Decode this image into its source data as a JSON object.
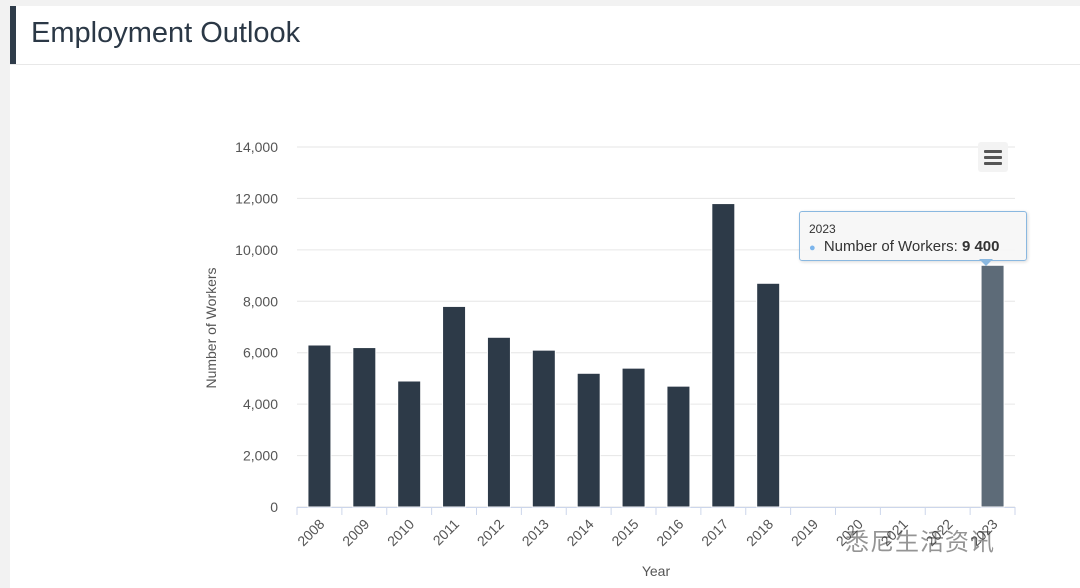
{
  "page": {
    "title": "Employment Outlook"
  },
  "chart_data": {
    "type": "bar",
    "title": "",
    "xlabel": "Year",
    "ylabel": "Number of Workers",
    "categories": [
      "2008",
      "2009",
      "2010",
      "2011",
      "2012",
      "2013",
      "2014",
      "2015",
      "2016",
      "2017",
      "2018",
      "2019",
      "2020",
      "2021",
      "2022",
      "2023"
    ],
    "values": [
      6300,
      6200,
      4900,
      7800,
      6600,
      6100,
      5200,
      5400,
      4700,
      11800,
      8700,
      null,
      null,
      null,
      null,
      9400
    ],
    "ylim": [
      0,
      14000
    ],
    "yticks": [
      0,
      2000,
      4000,
      6000,
      8000,
      10000,
      12000,
      14000
    ],
    "ytick_labels": [
      "0",
      "2,000",
      "4,000",
      "6,000",
      "8,000",
      "10,000",
      "12,000",
      "14,000"
    ],
    "grid": true,
    "highlighted_category": "2023",
    "colors": {
      "bar": "#2d3a48",
      "bar_highlight": "#5d6b78",
      "grid": "#e6e6e6",
      "axis_text": "#555555"
    }
  },
  "tooltip": {
    "year": "2023",
    "series_label": "Number of Workers:",
    "value": "9 400",
    "dot_color": "#7cb5ec"
  },
  "menu": {
    "icon": "hamburger-menu-icon"
  },
  "watermark": {
    "text": "悉尼生活资讯"
  }
}
